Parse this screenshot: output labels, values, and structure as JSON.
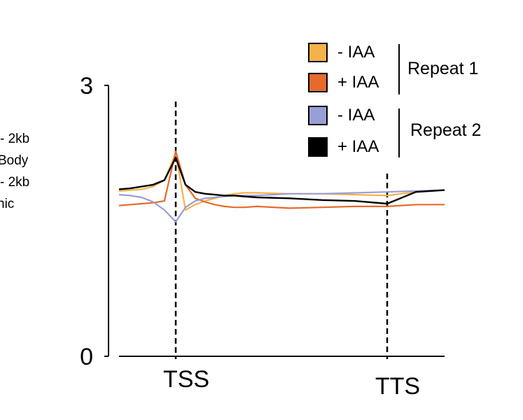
{
  "side_labels": [
    "- 2kb",
    "Body",
    "- 2kb",
    "nic"
  ],
  "legend": {
    "items": [
      {
        "label": "- IAA",
        "color": "#f4b24a"
      },
      {
        "label": "+ IAA",
        "color": "#e66a2b"
      },
      {
        "label": "- IAA",
        "color": "#9a9ed6"
      },
      {
        "label": "+ IAA",
        "color": "#000000"
      }
    ],
    "groups": [
      "Repeat 1",
      "Repeat 2"
    ]
  },
  "chart_data": {
    "type": "line",
    "ylim": [
      0,
      3
    ],
    "yticks": [
      "0",
      "3"
    ],
    "xmarkers": [
      "TSS",
      "TTS"
    ],
    "x": [
      0,
      3,
      6,
      9,
      12,
      15,
      18,
      21,
      24,
      27,
      30,
      33,
      36,
      40,
      50,
      60,
      70,
      80,
      90,
      100
    ],
    "series": [
      {
        "color": "#f4b24a",
        "values": [
          1.83,
          1.84,
          1.85,
          1.88,
          1.95,
          2.25,
          1.62,
          1.68,
          1.72,
          1.75,
          1.78,
          1.8,
          1.81,
          1.81,
          1.8,
          1.8,
          1.79,
          1.78,
          1.82,
          1.84
        ]
      },
      {
        "color": "#e66a2b",
        "values": [
          1.67,
          1.68,
          1.69,
          1.7,
          1.72,
          2.27,
          1.9,
          1.75,
          1.71,
          1.68,
          1.66,
          1.65,
          1.65,
          1.66,
          1.64,
          1.65,
          1.66,
          1.66,
          1.68,
          1.68
        ]
      },
      {
        "color": "#9a9ed6",
        "values": [
          1.79,
          1.78,
          1.76,
          1.71,
          1.62,
          1.49,
          1.65,
          1.72,
          1.75,
          1.76,
          1.77,
          1.78,
          1.78,
          1.78,
          1.8,
          1.8,
          1.81,
          1.82,
          1.83,
          1.84
        ]
      },
      {
        "color": "#000000",
        "values": [
          1.85,
          1.86,
          1.88,
          1.9,
          1.95,
          2.2,
          1.9,
          1.82,
          1.8,
          1.79,
          1.78,
          1.78,
          1.77,
          1.76,
          1.75,
          1.73,
          1.72,
          1.69,
          1.82,
          1.84
        ]
      }
    ]
  }
}
